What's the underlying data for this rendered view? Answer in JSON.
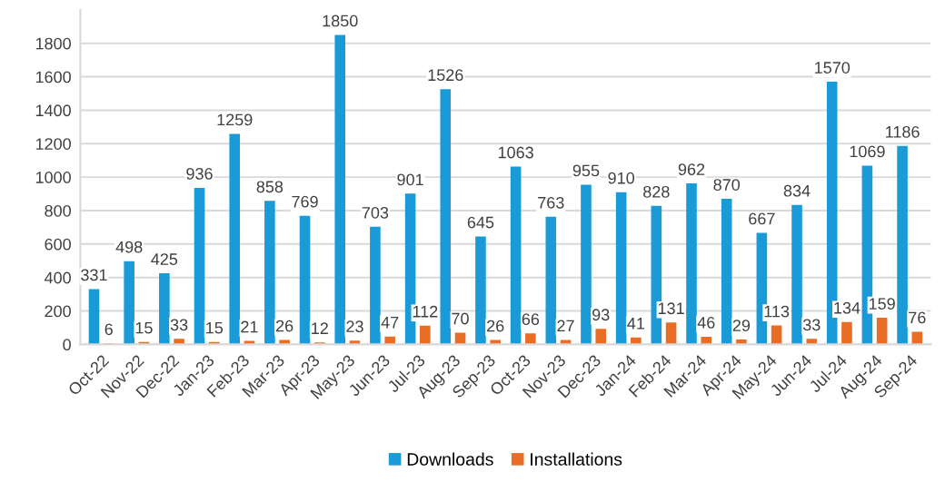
{
  "chart_data": {
    "type": "bar",
    "categories": [
      "Oct-22",
      "Nov-22",
      "Dec-22",
      "Jan-23",
      "Feb-23",
      "Mar-23",
      "Apr-23",
      "May-23",
      "Jun-23",
      "Jul-23",
      "Aug-23",
      "Sep-23",
      "Oct-23",
      "Nov-23",
      "Dec-23",
      "Jan-24",
      "Feb-24",
      "Mar-24",
      "Apr-24",
      "May-24",
      "Jun-24",
      "Jul-24",
      "Aug-24",
      "Sep-24"
    ],
    "series": [
      {
        "name": "Downloads",
        "color": "#1a9bd7",
        "values": [
          331,
          498,
          425,
          936,
          1259,
          858,
          769,
          1850,
          703,
          901,
          1526,
          645,
          1063,
          763,
          955,
          910,
          828,
          962,
          870,
          667,
          834,
          1570,
          1069,
          1186
        ]
      },
      {
        "name": "Installations",
        "color": "#e96d25",
        "values": [
          6,
          15,
          33,
          15,
          21,
          26,
          12,
          23,
          47,
          112,
          70,
          26,
          66,
          27,
          93,
          41,
          131,
          46,
          29,
          113,
          33,
          134,
          159,
          76
        ]
      }
    ],
    "ylim": [
      0,
      2000
    ],
    "yticks": [
      0,
      200,
      400,
      600,
      800,
      1000,
      1200,
      1400,
      1600,
      1800
    ],
    "grid": "y",
    "legend": "bottom",
    "data_labels": true
  }
}
